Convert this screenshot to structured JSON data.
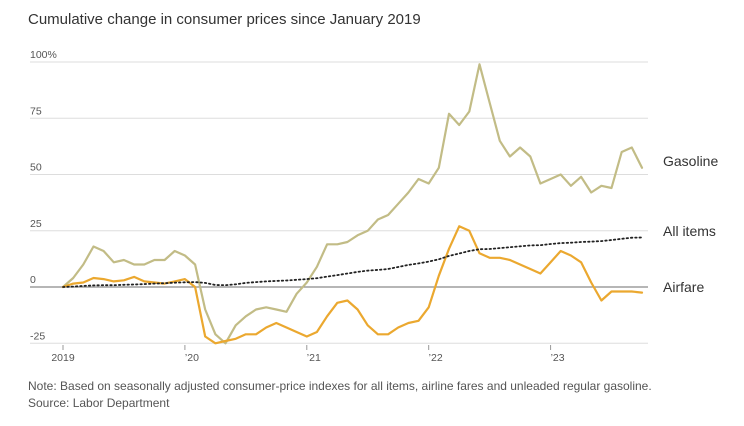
{
  "title": "Cumulative change in consumer prices since January 2019",
  "note": "Note: Based on seasonally adjusted consumer-price indexes for all items, airline fares and unleaded regular gasoline.",
  "source": "Source: Labor Department",
  "colors": {
    "gasoline": "#c2bc86",
    "all_items": "#222222",
    "airfare": "#eba82f",
    "zero_line": "#8a8a8a",
    "grid": "#dddddd"
  },
  "chart_data": {
    "type": "line",
    "ylim": [
      -28,
      100
    ],
    "y_ticks": [
      100,
      75,
      50,
      25,
      0,
      -25
    ],
    "y_tick_labels": [
      "100%",
      "75",
      "50",
      "25",
      "0",
      "-25"
    ],
    "x_ticks": [
      "2019-01",
      "2020-01",
      "2021-01",
      "2022-01",
      "2023-01"
    ],
    "x_tick_labels": [
      "2019",
      "’20",
      "’21",
      "’22",
      "’23"
    ],
    "start": "2019-01",
    "grid": true,
    "series": [
      {
        "name": "Gasoline",
        "key": "gasoline",
        "values": [
          0,
          4,
          10,
          18,
          16,
          11,
          12,
          10,
          10,
          12,
          12,
          16,
          14,
          10,
          -10,
          -21,
          -25,
          -17,
          -13,
          -10,
          -9,
          -10,
          -11,
          -3,
          2,
          9,
          19,
          19,
          20,
          23,
          25,
          30,
          32,
          37,
          42,
          48,
          46,
          53,
          77,
          72,
          78,
          99,
          82,
          65,
          58,
          62,
          58,
          46,
          48,
          50,
          45,
          49,
          42,
          45,
          44,
          60,
          62,
          53
        ]
      },
      {
        "name": "All items",
        "key": "all_items",
        "values": [
          0,
          0.2,
          0.5,
          0.7,
          0.8,
          0.8,
          1.0,
          1.1,
          1.3,
          1.5,
          1.7,
          1.9,
          2.1,
          2.2,
          1.8,
          0.9,
          0.8,
          1.2,
          1.8,
          2.2,
          2.5,
          2.7,
          2.9,
          3.2,
          3.5,
          3.9,
          4.6,
          5.3,
          6.0,
          6.7,
          7.3,
          7.6,
          8.0,
          8.9,
          9.8,
          10.5,
          11.3,
          12.3,
          13.8,
          14.9,
          16.0,
          16.8,
          16.9,
          17.3,
          17.7,
          18.1,
          18.5,
          18.6,
          19.1,
          19.5,
          19.7,
          20.0,
          20.2,
          20.4,
          20.9,
          21.4,
          21.9,
          22.0
        ]
      },
      {
        "name": "Airfare",
        "key": "airfare",
        "values": [
          0,
          1.5,
          2,
          4,
          3.5,
          2.5,
          3,
          4.5,
          2.5,
          2,
          1.5,
          2.5,
          3.5,
          0,
          -22,
          -25,
          -24,
          -23,
          -21,
          -21,
          -18,
          -16,
          -18,
          -20,
          -22,
          -20,
          -13,
          -7,
          -6,
          -10,
          -17,
          -21,
          -21,
          -18,
          -16,
          -15,
          -9,
          5,
          17,
          27,
          25,
          15,
          13,
          13,
          12,
          10,
          8,
          6,
          11,
          16,
          14,
          11,
          2,
          -6,
          -2,
          -2,
          -2,
          -2.5
        ]
      }
    ]
  }
}
